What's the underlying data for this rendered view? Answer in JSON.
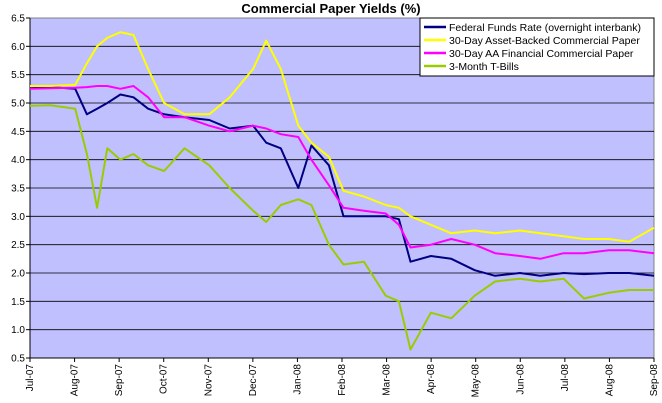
{
  "chart_data": {
    "type": "line",
    "title": "Commercial Paper Yields (%)",
    "xlabel": "",
    "ylabel": "",
    "ylim": [
      0.5,
      6.5
    ],
    "y_ticks": [
      "0.5",
      "1.0",
      "1.5",
      "2.0",
      "2.5",
      "3.0",
      "3.5",
      "4.0",
      "4.5",
      "5.0",
      "5.5",
      "6.0",
      "6.5"
    ],
    "x_ticks": [
      "Jul-07",
      "Aug-07",
      "Sep-07",
      "Oct-07",
      "Nov-07",
      "Dec-07",
      "Jan-08",
      "Feb-08",
      "Mar-08",
      "Apr-08",
      "May-08",
      "Jun-08",
      "Jul-08",
      "Aug-08",
      "Sep-08"
    ],
    "grid": "horizontal",
    "legend_position": "top-right",
    "plot_background": "#c0c0ff",
    "x": [
      "2007-07-01",
      "2007-07-15",
      "2007-08-01",
      "2007-08-09",
      "2007-08-16",
      "2007-08-23",
      "2007-09-01",
      "2007-09-10",
      "2007-09-20",
      "2007-10-01",
      "2007-10-15",
      "2007-11-01",
      "2007-11-15",
      "2007-12-01",
      "2007-12-10",
      "2007-12-20",
      "2008-01-01",
      "2008-01-10",
      "2008-01-22",
      "2008-02-01",
      "2008-02-15",
      "2008-03-01",
      "2008-03-10",
      "2008-03-18",
      "2008-04-01",
      "2008-04-15",
      "2008-05-01",
      "2008-05-15",
      "2008-06-01",
      "2008-06-15",
      "2008-07-01",
      "2008-07-15",
      "2008-08-01",
      "2008-08-15",
      "2008-09-01"
    ],
    "series": [
      {
        "name": "Federal Funds Rate (overnight interbank)",
        "color": "#000080",
        "values": [
          5.26,
          5.28,
          5.25,
          4.8,
          4.9,
          5.0,
          5.15,
          5.1,
          4.9,
          4.8,
          4.75,
          4.7,
          4.55,
          4.6,
          4.3,
          4.2,
          3.5,
          4.25,
          3.9,
          3.0,
          3.0,
          3.0,
          2.95,
          2.2,
          2.3,
          2.25,
          2.05,
          1.95,
          2.0,
          1.95,
          2.0,
          1.98,
          2.0,
          2.0,
          1.95
        ]
      },
      {
        "name": "30-Day Asset-Backed Commercial Paper",
        "color": "#ffff00",
        "values": [
          5.3,
          5.3,
          5.32,
          5.7,
          6.0,
          6.15,
          6.25,
          6.2,
          5.6,
          5.0,
          4.8,
          4.8,
          5.1,
          5.6,
          6.1,
          5.6,
          4.6,
          4.3,
          4.05,
          3.45,
          3.35,
          3.2,
          3.15,
          3.0,
          2.85,
          2.7,
          2.75,
          2.7,
          2.75,
          2.7,
          2.65,
          2.6,
          2.6,
          2.55,
          2.8
        ]
      },
      {
        "name": "30-Day AA Financial Commercial Paper",
        "color": "#ff00ff",
        "values": [
          5.25,
          5.26,
          5.27,
          5.28,
          5.3,
          5.3,
          5.25,
          5.3,
          5.1,
          4.75,
          4.75,
          4.6,
          4.5,
          4.6,
          4.55,
          4.45,
          4.4,
          4.0,
          3.55,
          3.15,
          3.1,
          3.05,
          2.85,
          2.45,
          2.5,
          2.6,
          2.5,
          2.35,
          2.3,
          2.25,
          2.35,
          2.35,
          2.4,
          2.4,
          2.35
        ]
      },
      {
        "name": "3-Month T-Bills",
        "color": "#99cc00",
        "values": [
          4.95,
          4.96,
          4.9,
          4.1,
          3.15,
          4.2,
          4.0,
          4.1,
          3.9,
          3.8,
          4.2,
          3.9,
          3.5,
          3.1,
          2.9,
          3.2,
          3.3,
          3.2,
          2.5,
          2.15,
          2.2,
          1.6,
          1.5,
          0.65,
          1.3,
          1.2,
          1.6,
          1.85,
          1.9,
          1.85,
          1.9,
          1.55,
          1.65,
          1.7,
          1.7
        ]
      }
    ]
  }
}
